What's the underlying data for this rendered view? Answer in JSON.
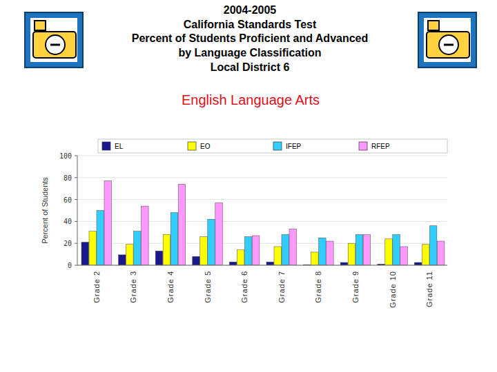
{
  "header": {
    "lines": [
      "2004-2005",
      "California Standards Test",
      "Percent of Students Proficient and Advanced",
      "by Language Classification",
      "Local District 6"
    ]
  },
  "chart_data": {
    "type": "bar",
    "title": "English Language Arts",
    "y_label": "Percent of Students",
    "categories": [
      "Grade 2",
      "Grade 3",
      "Grade 4",
      "Grade 5",
      "Grade 6",
      "Grade 7",
      "Grade 8",
      "Grade 9",
      "Grade 10",
      "Grade 11"
    ],
    "series": [
      {
        "name": "EL",
        "color": "#1a1a8c",
        "values": [
          21,
          9.5,
          13,
          8,
          3,
          3,
          0.5,
          2.5,
          1,
          2.5
        ]
      },
      {
        "name": "EO",
        "color": "#ffff00",
        "values": [
          31,
          19,
          28,
          26,
          14,
          17,
          12,
          20,
          24,
          19
        ]
      },
      {
        "name": "IFEP",
        "color": "#33ccff",
        "values": [
          50,
          31,
          48,
          42,
          26,
          28,
          25,
          28,
          28,
          36
        ]
      },
      {
        "name": "RFEP",
        "color": "#ff99ff",
        "values": [
          77,
          54,
          74,
          57,
          27,
          33,
          22,
          28,
          17,
          22
        ]
      }
    ],
    "ylim": [
      0,
      100
    ],
    "yticks": [
      0,
      20,
      40,
      60,
      80,
      100
    ],
    "grid": true,
    "legend": "top"
  }
}
